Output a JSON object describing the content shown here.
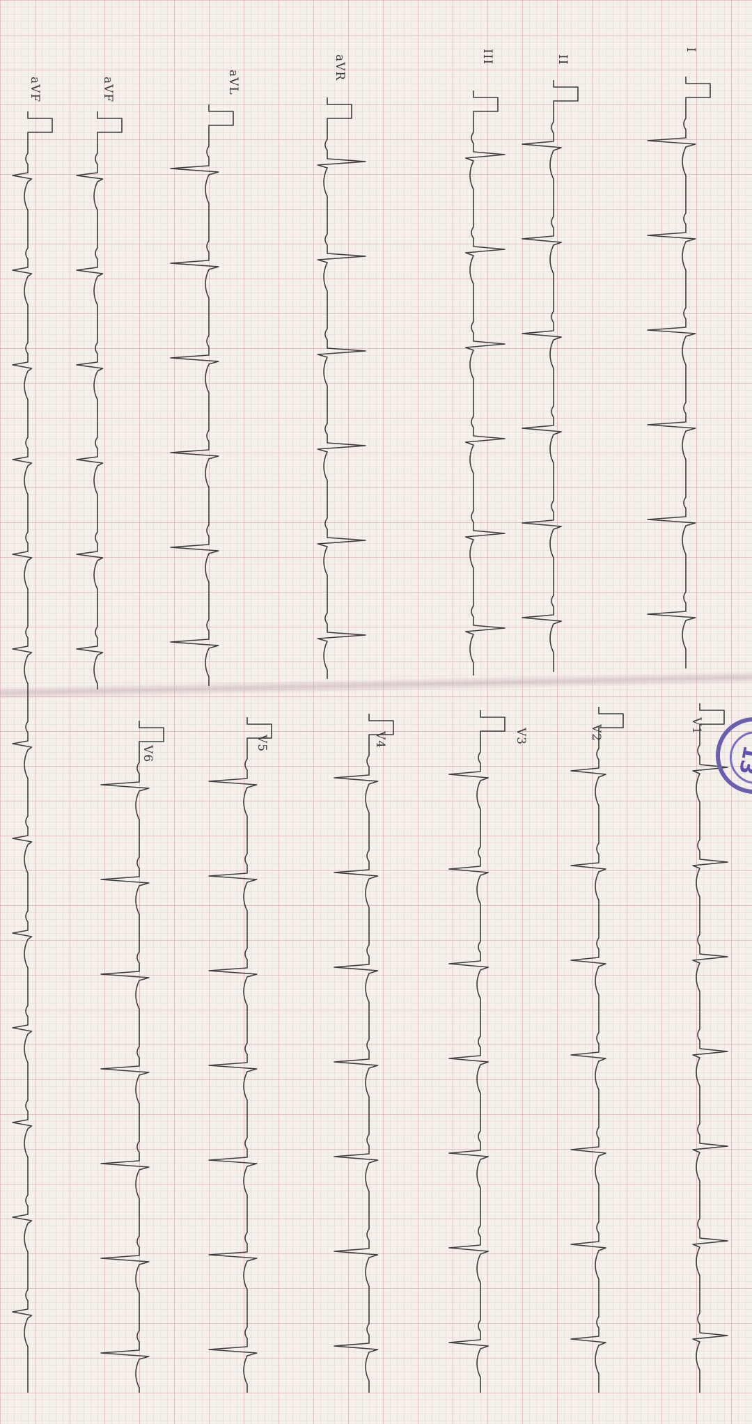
{
  "leads": {
    "top_row": [
      "I",
      "II",
      "III",
      "aVR",
      "aVL",
      "aVF",
      "aVF"
    ],
    "bottom_row": [
      "V1",
      "V2",
      "V3",
      "V4",
      "V5",
      "V6"
    ]
  },
  "stamp": {
    "text": "13"
  },
  "colors": {
    "trace": "#3d3d3d",
    "grid": "#d6aab2",
    "paper": "#f4f0ea",
    "stamp": "#6b5fb0"
  }
}
